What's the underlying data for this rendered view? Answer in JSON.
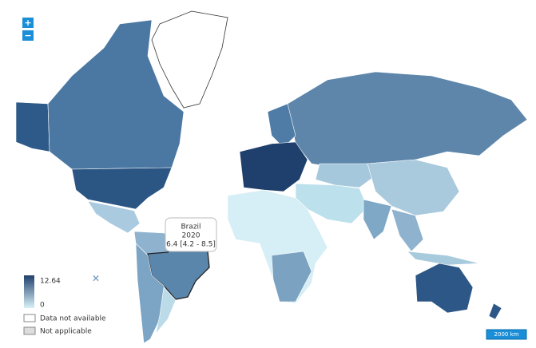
{
  "zoom": {
    "in": "+",
    "out": "−"
  },
  "tooltip": {
    "country": "Brazil",
    "year": "2020",
    "value": "6.4 [4.2 - 8.5]"
  },
  "legend": {
    "max": 12.64,
    "min": 0,
    "close": "×",
    "items": [
      "Data not available",
      "Not applicable"
    ]
  },
  "scale": "2000 km"
}
